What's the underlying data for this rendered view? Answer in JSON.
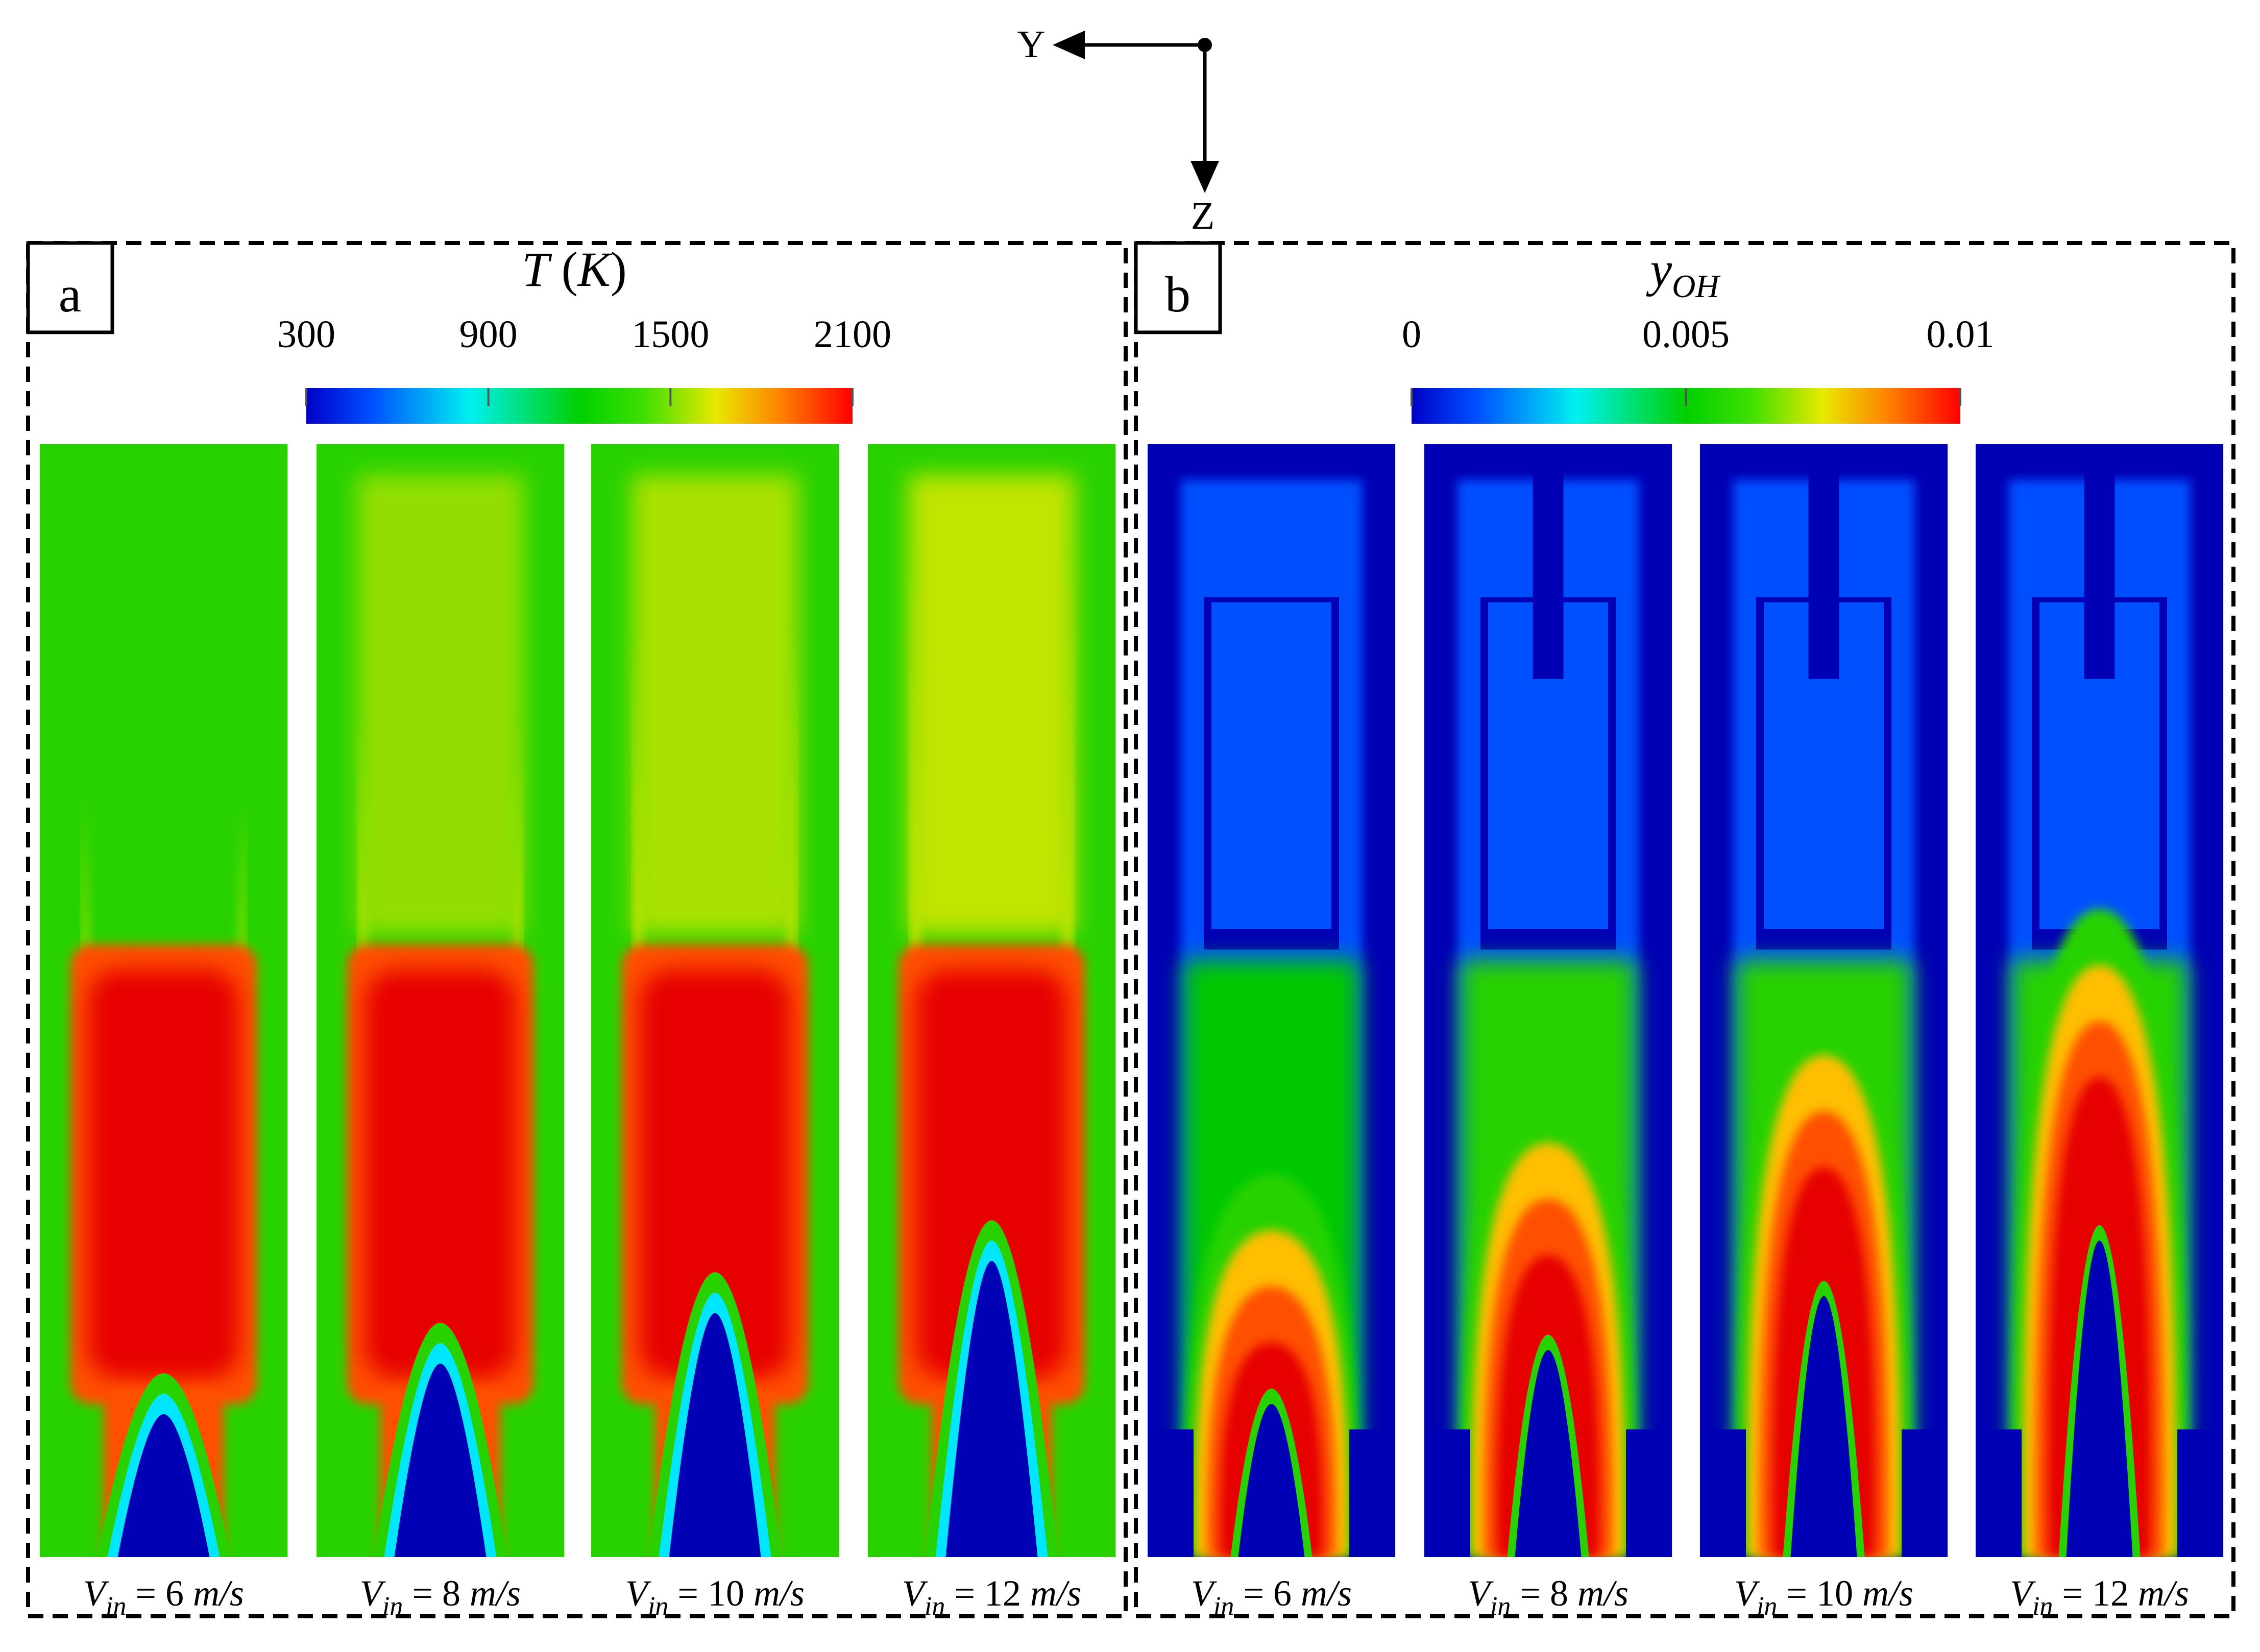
{
  "figure": {
    "axes": {
      "y_label": "Y",
      "z_label": "Z"
    },
    "panels": [
      {
        "letter": "a",
        "variable": "T (K)",
        "variable_symbol": "T",
        "variable_unit": "K",
        "colorbar": {
          "min": 300,
          "max": 2100,
          "ticks": [
            "300",
            "900",
            "1500",
            "2100"
          ],
          "tick_values": [
            300,
            900,
            1500,
            2100
          ]
        },
        "background_level": 0.5,
        "cases": [
          {
            "label": "V_in = 6 m/s",
            "speed": "6"
          },
          {
            "label": "V_in = 8 m/s",
            "speed": "8"
          },
          {
            "label": "V_in = 10 m/s",
            "speed": "10"
          },
          {
            "label": "V_in = 12 m/s",
            "speed": "12"
          }
        ]
      },
      {
        "letter": "b",
        "variable": "y_OH",
        "variable_symbol": "y",
        "variable_subscript": "OH",
        "colorbar": {
          "min": 0,
          "max": 0.01,
          "ticks": [
            "0",
            "0.005",
            "0.01"
          ],
          "tick_values": [
            0,
            0.005,
            0.01
          ]
        },
        "background_level": 0.02,
        "cases": [
          {
            "label": "V_in = 6 m/s",
            "speed": "6"
          },
          {
            "label": "V_in = 8 m/s",
            "speed": "8"
          },
          {
            "label": "V_in = 10 m/s",
            "speed": "10"
          },
          {
            "label": "V_in = 12 m/s",
            "speed": "12"
          }
        ]
      }
    ],
    "case_label_parts": {
      "symbol": "V",
      "subscript": "in",
      "equals": "=",
      "unit": "m/s"
    },
    "colormap": [
      "#0000b4",
      "#0050ff",
      "#00e6ff",
      "#00c800",
      "#28d200",
      "#d2e600",
      "#ffbe00",
      "#ff5000",
      "#e60000"
    ]
  }
}
